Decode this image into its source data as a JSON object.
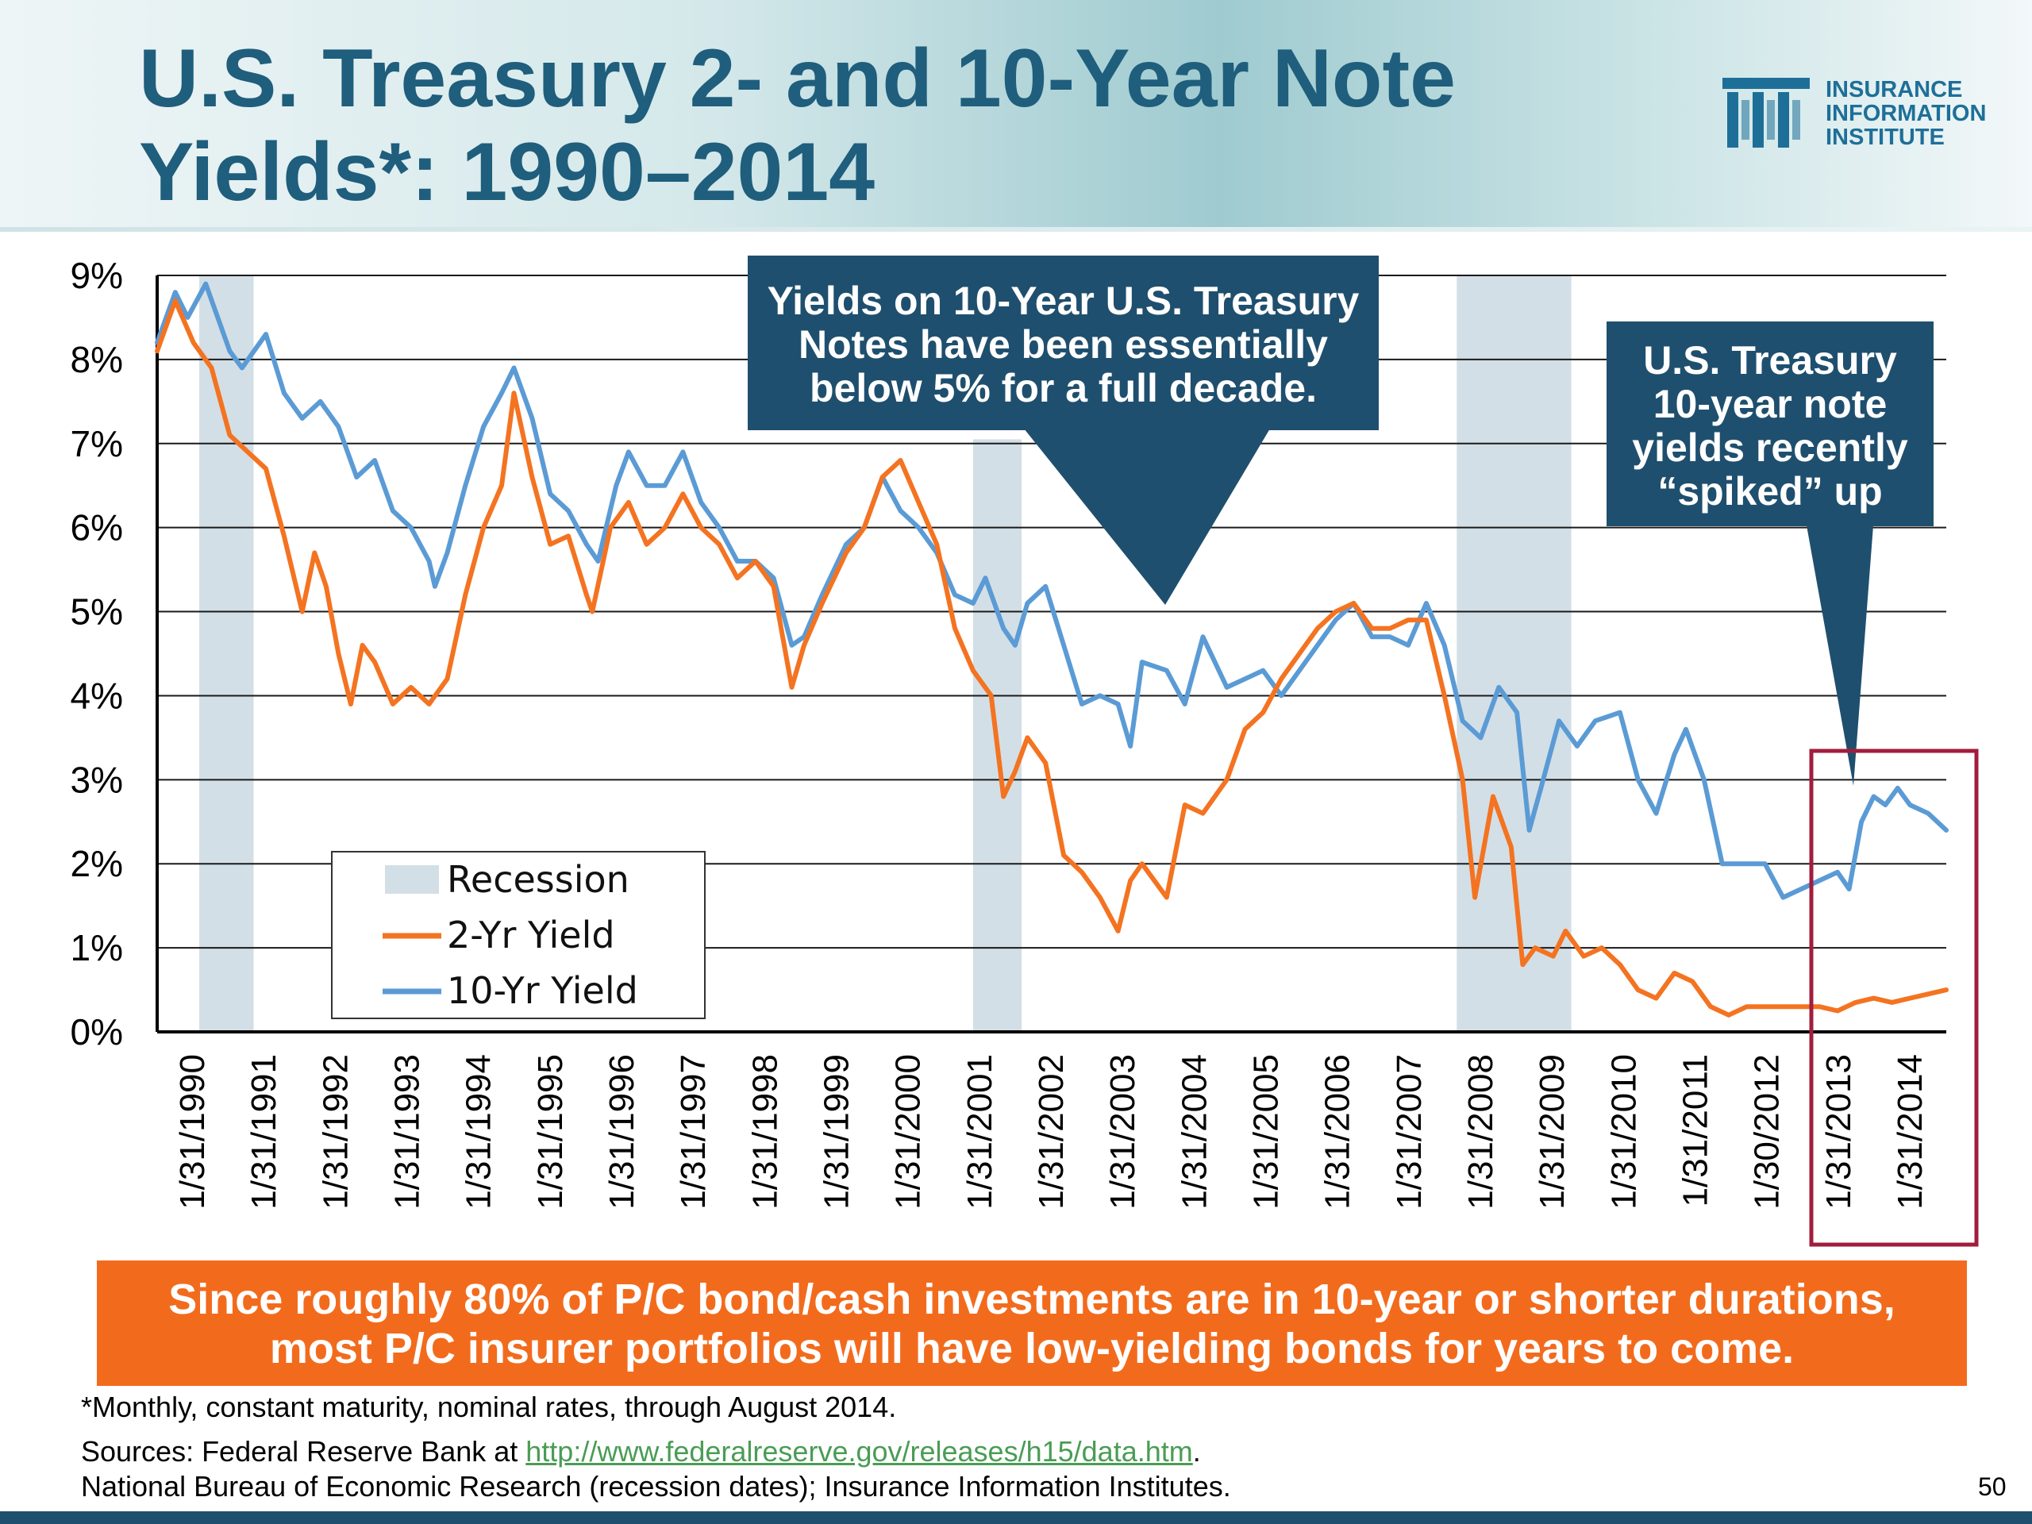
{
  "header": {
    "title": "U.S. Treasury 2- and 10-Year Note Yields*: 1990–2014",
    "logo_lines": [
      "INSURANCE",
      "INFORMATION",
      "INSTITUTE"
    ]
  },
  "callouts": {
    "decade": [
      "Yields on 10-Year U.S. Treasury",
      "Notes have been essentially",
      "below 5% for a full decade."
    ],
    "spiked": [
      "U.S. Treasury",
      "10-year note",
      "yields recently",
      "“spiked” up"
    ]
  },
  "banner": [
    "Since roughly 80% of P/C bond/cash investments are in 10-year or shorter durations,",
    "most P/C insurer portfolios will have low-yielding bonds for years to come."
  ],
  "footnote": "*Monthly, constant maturity, nominal rates, through August 2014.",
  "sources": {
    "prefix": "Sources: Federal Reserve Bank at ",
    "link": "http://www.federalreserve.gov/releases/h15/data.htm",
    "suffix": ".",
    "line2": "National Bureau of Economic Research (recession dates); Insurance Information Institutes."
  },
  "page_number": "50",
  "colors": {
    "two_year": "#f47321",
    "ten_year": "#5b9bd5",
    "recession": "#d3dfe6",
    "callout_bg": "#1f4f6e",
    "banner_bg": "#f26b1d",
    "highlight_box": "#a11d3c"
  },
  "chart_data": {
    "type": "line",
    "title": "",
    "xlabel": "",
    "ylabel": "",
    "ylim": [
      0,
      9
    ],
    "y_ticks": [
      "0%",
      "1%",
      "2%",
      "3%",
      "4%",
      "5%",
      "6%",
      "7%",
      "8%",
      "9%"
    ],
    "x_range": [
      1990.0,
      2014.67
    ],
    "x_tick_labels": [
      "1/31/1990",
      "1/31/1991",
      "1/31/1992",
      "1/31/1993",
      "1/31/1994",
      "1/31/1995",
      "1/31/1996",
      "1/31/1997",
      "1/31/1998",
      "1/31/1999",
      "1/31/2000",
      "1/31/2001",
      "1/31/2002",
      "1/31/2003",
      "1/31/2004",
      "1/31/2005",
      "1/31/2006",
      "1/31/2007",
      "1/31/2008",
      "1/31/2009",
      "1/31/2010",
      "1/31/2011",
      "1/30/2012",
      "1/31/2013",
      "1/31/2014"
    ],
    "grid": true,
    "legend_position": "bottom-left",
    "legend": [
      "Recession",
      "2-Yr Yield",
      "10-Yr Yield"
    ],
    "recessions": [
      [
        1990.58,
        1991.33
      ],
      [
        2001.25,
        2001.92
      ],
      [
        2007.92,
        2009.5
      ]
    ],
    "series": [
      {
        "name": "10-Yr Yield",
        "points": [
          [
            1990.0,
            8.2
          ],
          [
            1990.25,
            8.8
          ],
          [
            1990.42,
            8.5
          ],
          [
            1990.67,
            8.9
          ],
          [
            1991.0,
            8.1
          ],
          [
            1991.17,
            7.9
          ],
          [
            1991.5,
            8.3
          ],
          [
            1991.75,
            7.6
          ],
          [
            1992.0,
            7.3
          ],
          [
            1992.25,
            7.5
          ],
          [
            1992.5,
            7.2
          ],
          [
            1992.75,
            6.6
          ],
          [
            1993.0,
            6.8
          ],
          [
            1993.25,
            6.2
          ],
          [
            1993.5,
            6.0
          ],
          [
            1993.75,
            5.6
          ],
          [
            1993.83,
            5.3
          ],
          [
            1994.0,
            5.7
          ],
          [
            1994.25,
            6.5
          ],
          [
            1994.5,
            7.2
          ],
          [
            1994.75,
            7.6
          ],
          [
            1994.92,
            7.9
          ],
          [
            1995.17,
            7.3
          ],
          [
            1995.42,
            6.4
          ],
          [
            1995.67,
            6.2
          ],
          [
            1995.92,
            5.8
          ],
          [
            1996.08,
            5.6
          ],
          [
            1996.33,
            6.5
          ],
          [
            1996.5,
            6.9
          ],
          [
            1996.75,
            6.5
          ],
          [
            1997.0,
            6.5
          ],
          [
            1997.25,
            6.9
          ],
          [
            1997.5,
            6.3
          ],
          [
            1997.75,
            6.0
          ],
          [
            1998.0,
            5.6
          ],
          [
            1998.25,
            5.6
          ],
          [
            1998.5,
            5.4
          ],
          [
            1998.75,
            4.6
          ],
          [
            1998.92,
            4.7
          ],
          [
            1999.17,
            5.2
          ],
          [
            1999.5,
            5.8
          ],
          [
            1999.75,
            6.0
          ],
          [
            2000.0,
            6.6
          ],
          [
            2000.25,
            6.2
          ],
          [
            2000.5,
            6.0
          ],
          [
            2000.75,
            5.7
          ],
          [
            2001.0,
            5.2
          ],
          [
            2001.25,
            5.1
          ],
          [
            2001.42,
            5.4
          ],
          [
            2001.67,
            4.8
          ],
          [
            2001.83,
            4.6
          ],
          [
            2002.0,
            5.1
          ],
          [
            2002.25,
            5.3
          ],
          [
            2002.5,
            4.6
          ],
          [
            2002.75,
            3.9
          ],
          [
            2003.0,
            4.0
          ],
          [
            2003.25,
            3.9
          ],
          [
            2003.42,
            3.4
          ],
          [
            2003.58,
            4.4
          ],
          [
            2003.92,
            4.3
          ],
          [
            2004.17,
            3.9
          ],
          [
            2004.42,
            4.7
          ],
          [
            2004.75,
            4.1
          ],
          [
            2005.0,
            4.2
          ],
          [
            2005.25,
            4.3
          ],
          [
            2005.5,
            4.0
          ],
          [
            2005.75,
            4.3
          ],
          [
            2006.0,
            4.6
          ],
          [
            2006.25,
            4.9
          ],
          [
            2006.5,
            5.1
          ],
          [
            2006.75,
            4.7
          ],
          [
            2007.0,
            4.7
          ],
          [
            2007.25,
            4.6
          ],
          [
            2007.5,
            5.1
          ],
          [
            2007.75,
            4.6
          ],
          [
            2008.0,
            3.7
          ],
          [
            2008.25,
            3.5
          ],
          [
            2008.5,
            4.1
          ],
          [
            2008.75,
            3.8
          ],
          [
            2008.92,
            2.4
          ],
          [
            2009.08,
            2.9
          ],
          [
            2009.33,
            3.7
          ],
          [
            2009.58,
            3.4
          ],
          [
            2009.83,
            3.7
          ],
          [
            2010.17,
            3.8
          ],
          [
            2010.42,
            3.0
          ],
          [
            2010.67,
            2.6
          ],
          [
            2010.92,
            3.3
          ],
          [
            2011.08,
            3.6
          ],
          [
            2011.33,
            3.0
          ],
          [
            2011.58,
            2.0
          ],
          [
            2011.83,
            2.0
          ],
          [
            2012.17,
            2.0
          ],
          [
            2012.42,
            1.6
          ],
          [
            2012.67,
            1.7
          ],
          [
            2012.92,
            1.8
          ],
          [
            2013.17,
            1.9
          ],
          [
            2013.33,
            1.7
          ],
          [
            2013.5,
            2.5
          ],
          [
            2013.67,
            2.8
          ],
          [
            2013.83,
            2.7
          ],
          [
            2014.0,
            2.9
          ],
          [
            2014.17,
            2.7
          ],
          [
            2014.42,
            2.6
          ],
          [
            2014.67,
            2.4
          ]
        ]
      },
      {
        "name": "2-Yr Yield",
        "points": [
          [
            1990.0,
            8.1
          ],
          [
            1990.25,
            8.7
          ],
          [
            1990.5,
            8.2
          ],
          [
            1990.75,
            7.9
          ],
          [
            1991.0,
            7.1
          ],
          [
            1991.25,
            6.9
          ],
          [
            1991.5,
            6.7
          ],
          [
            1991.75,
            5.9
          ],
          [
            1992.0,
            5.0
          ],
          [
            1992.17,
            5.7
          ],
          [
            1992.33,
            5.3
          ],
          [
            1992.5,
            4.5
          ],
          [
            1992.67,
            3.9
          ],
          [
            1992.83,
            4.6
          ],
          [
            1993.0,
            4.4
          ],
          [
            1993.25,
            3.9
          ],
          [
            1993.5,
            4.1
          ],
          [
            1993.75,
            3.9
          ],
          [
            1994.0,
            4.2
          ],
          [
            1994.25,
            5.2
          ],
          [
            1994.5,
            6.0
          ],
          [
            1994.75,
            6.5
          ],
          [
            1994.92,
            7.6
          ],
          [
            1995.17,
            6.6
          ],
          [
            1995.42,
            5.8
          ],
          [
            1995.67,
            5.9
          ],
          [
            1995.92,
            5.2
          ],
          [
            1996.0,
            5.0
          ],
          [
            1996.25,
            6.0
          ],
          [
            1996.5,
            6.3
          ],
          [
            1996.75,
            5.8
          ],
          [
            1997.0,
            6.0
          ],
          [
            1997.25,
            6.4
          ],
          [
            1997.5,
            6.0
          ],
          [
            1997.75,
            5.8
          ],
          [
            1998.0,
            5.4
          ],
          [
            1998.25,
            5.6
          ],
          [
            1998.5,
            5.3
          ],
          [
            1998.75,
            4.1
          ],
          [
            1998.92,
            4.6
          ],
          [
            1999.17,
            5.1
          ],
          [
            1999.5,
            5.7
          ],
          [
            1999.75,
            6.0
          ],
          [
            2000.0,
            6.6
          ],
          [
            2000.25,
            6.8
          ],
          [
            2000.5,
            6.3
          ],
          [
            2000.75,
            5.8
          ],
          [
            2001.0,
            4.8
          ],
          [
            2001.25,
            4.3
          ],
          [
            2001.5,
            4.0
          ],
          [
            2001.67,
            2.8
          ],
          [
            2001.83,
            3.1
          ],
          [
            2002.0,
            3.5
          ],
          [
            2002.25,
            3.2
          ],
          [
            2002.5,
            2.1
          ],
          [
            2002.75,
            1.9
          ],
          [
            2003.0,
            1.6
          ],
          [
            2003.25,
            1.2
          ],
          [
            2003.42,
            1.8
          ],
          [
            2003.58,
            2.0
          ],
          [
            2003.92,
            1.6
          ],
          [
            2004.17,
            2.7
          ],
          [
            2004.42,
            2.6
          ],
          [
            2004.75,
            3.0
          ],
          [
            2005.0,
            3.6
          ],
          [
            2005.25,
            3.8
          ],
          [
            2005.5,
            4.2
          ],
          [
            2005.75,
            4.5
          ],
          [
            2006.0,
            4.8
          ],
          [
            2006.25,
            5.0
          ],
          [
            2006.5,
            5.1
          ],
          [
            2006.75,
            4.8
          ],
          [
            2007.0,
            4.8
          ],
          [
            2007.25,
            4.9
          ],
          [
            2007.5,
            4.9
          ],
          [
            2007.75,
            4.0
          ],
          [
            2008.0,
            3.0
          ],
          [
            2008.17,
            1.6
          ],
          [
            2008.42,
            2.8
          ],
          [
            2008.67,
            2.2
          ],
          [
            2008.83,
            0.8
          ],
          [
            2009.0,
            1.0
          ],
          [
            2009.25,
            0.9
          ],
          [
            2009.42,
            1.2
          ],
          [
            2009.67,
            0.9
          ],
          [
            2009.92,
            1.0
          ],
          [
            2010.17,
            0.8
          ],
          [
            2010.42,
            0.5
          ],
          [
            2010.67,
            0.4
          ],
          [
            2010.92,
            0.7
          ],
          [
            2011.17,
            0.6
          ],
          [
            2011.42,
            0.3
          ],
          [
            2011.67,
            0.2
          ],
          [
            2011.92,
            0.3
          ],
          [
            2012.17,
            0.3
          ],
          [
            2012.42,
            0.3
          ],
          [
            2012.67,
            0.3
          ],
          [
            2012.92,
            0.3
          ],
          [
            2013.17,
            0.25
          ],
          [
            2013.42,
            0.35
          ],
          [
            2013.67,
            0.4
          ],
          [
            2013.92,
            0.35
          ],
          [
            2014.17,
            0.4
          ],
          [
            2014.42,
            0.45
          ],
          [
            2014.67,
            0.5
          ]
        ]
      }
    ]
  }
}
